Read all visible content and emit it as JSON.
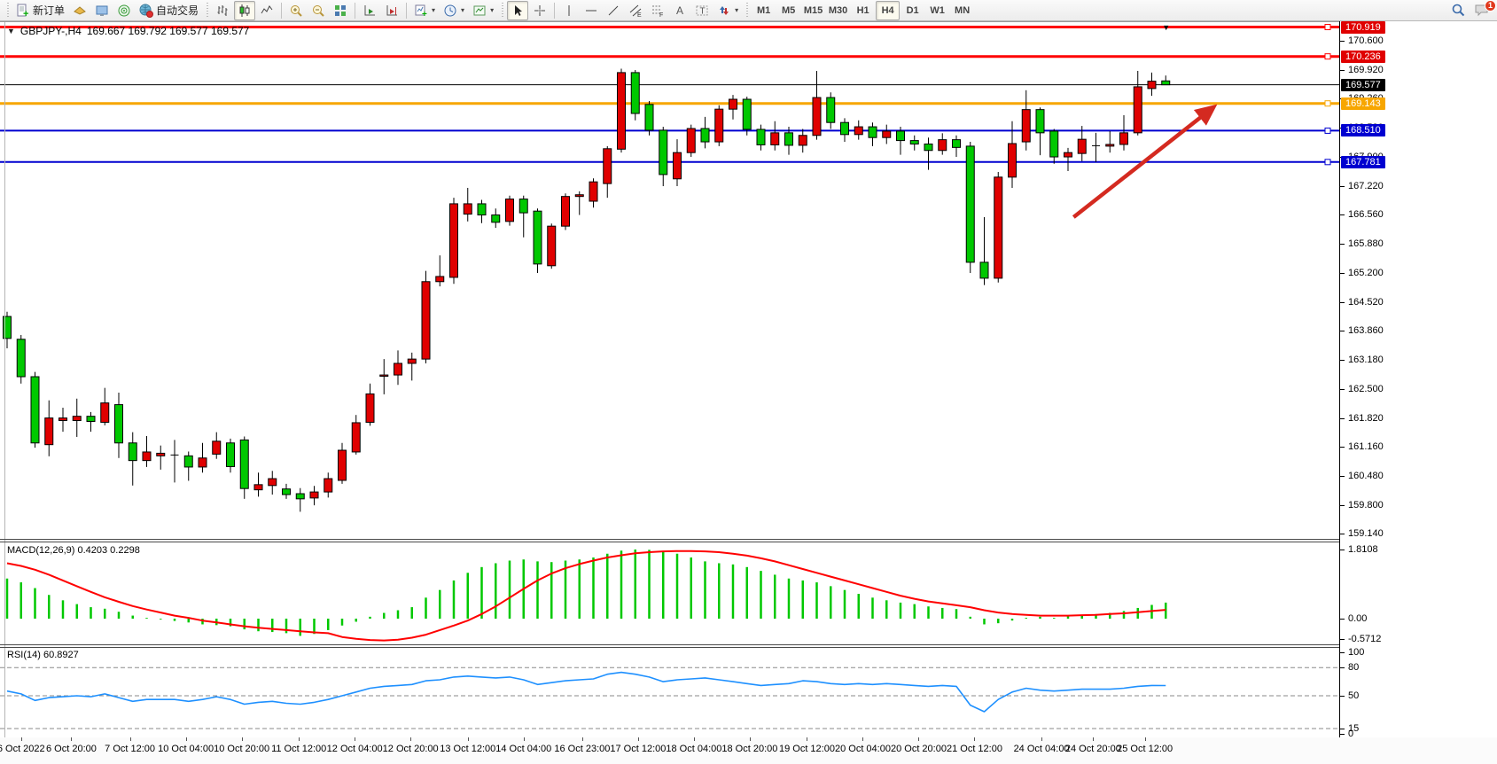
{
  "toolbar": {
    "new_order": "新订单",
    "autotrading": "自动交易",
    "notification_count": "1"
  },
  "timeframes": {
    "items": [
      "M1",
      "M5",
      "M15",
      "M30",
      "H1",
      "H4",
      "D1",
      "W1",
      "MN"
    ],
    "active": "H4"
  },
  "chart": {
    "title": {
      "symbol": "GBPJPY-,H4",
      "quotes": "169.667 169.792 169.577 169.577"
    }
  },
  "panes": {
    "macd": {
      "label": "MACD(12,26,9) 0.4203 0.2298"
    },
    "rsi": {
      "label": "RSI(14) 60.8927"
    }
  },
  "chart_data": {
    "type": "candlestick",
    "symbol": "GBPJPY-",
    "period": "H4",
    "current_ohlc": {
      "open": 169.667,
      "high": 169.792,
      "low": 169.577,
      "close": 169.577
    },
    "colors": {
      "up": "#e00000",
      "down": "#00c800",
      "wick": "#000000",
      "macd_hist": "#00c800",
      "macd_signal": "#ff0000",
      "rsi_line": "#1e90ff",
      "arrow": "#d42a20",
      "level_dash": "#8a8a8a"
    },
    "price_axis": {
      "ticks": [
        {
          "t": "170.600",
          "p": 170.6
        },
        {
          "t": "169.920",
          "p": 169.92
        },
        {
          "t": "169.260",
          "p": 169.26
        },
        {
          "t": "168.580",
          "p": 168.58
        },
        {
          "t": "167.900",
          "p": 167.9
        },
        {
          "t": "167.220",
          "p": 167.22
        },
        {
          "t": "166.560",
          "p": 166.56
        },
        {
          "t": "165.880",
          "p": 165.88
        },
        {
          "t": "165.200",
          "p": 165.2
        },
        {
          "t": "164.520",
          "p": 164.52
        },
        {
          "t": "163.860",
          "p": 163.86
        },
        {
          "t": "163.180",
          "p": 163.18
        },
        {
          "t": "162.500",
          "p": 162.5
        },
        {
          "t": "161.820",
          "p": 161.82
        },
        {
          "t": "161.160",
          "p": 161.16
        },
        {
          "t": "160.480",
          "p": 160.48
        },
        {
          "t": "159.800",
          "p": 159.8
        },
        {
          "t": "159.140",
          "p": 159.14
        }
      ],
      "badges": [
        {
          "t": "170.919",
          "p": 170.919,
          "bg": "#e00000"
        },
        {
          "t": "170.236",
          "p": 170.236,
          "bg": "#e00000"
        },
        {
          "t": "169.577",
          "p": 169.577,
          "bg": "#000000"
        },
        {
          "t": "169.143",
          "p": 169.143,
          "bg": "#f7a600"
        },
        {
          "t": "168.510",
          "p": 168.51,
          "bg": "#0000d0"
        },
        {
          "t": "167.781",
          "p": 167.781,
          "bg": "#0000d0"
        }
      ]
    },
    "hlines": [
      {
        "p": 170.919,
        "color": "#ff0000",
        "w": 3,
        "handle": true
      },
      {
        "p": 170.236,
        "color": "#ff0000",
        "w": 3,
        "handle": true
      },
      {
        "p": 169.577,
        "color": "#000000",
        "w": 1,
        "handle": false
      },
      {
        "p": 169.143,
        "color": "#f7a600",
        "w": 3,
        "handle": true
      },
      {
        "p": 168.51,
        "color": "#0000d0",
        "w": 2,
        "handle": true
      },
      {
        "p": 167.781,
        "color": "#0000d0",
        "w": 2,
        "handle": true
      }
    ],
    "arrow": {
      "from": {
        "i": 76.4,
        "p": 166.5
      },
      "to": {
        "i": 86.4,
        "p": 169.05
      }
    },
    "candles": [
      [
        164.19,
        164.3,
        163.45,
        163.68
      ],
      [
        163.66,
        163.76,
        162.63,
        162.79
      ],
      [
        162.79,
        162.9,
        161.14,
        161.25
      ],
      [
        161.21,
        162.24,
        160.94,
        161.83
      ],
      [
        161.77,
        162.07,
        161.51,
        161.83
      ],
      [
        161.77,
        162.28,
        161.39,
        161.87
      ],
      [
        161.87,
        161.97,
        161.51,
        161.75
      ],
      [
        161.73,
        162.53,
        161.66,
        162.18
      ],
      [
        162.14,
        162.42,
        160.9,
        161.25
      ],
      [
        161.25,
        161.5,
        160.26,
        160.84
      ],
      [
        160.84,
        161.41,
        160.69,
        161.04
      ],
      [
        160.95,
        161.19,
        160.63,
        161.01
      ],
      [
        160.97,
        161.32,
        160.33,
        160.95
      ],
      [
        160.95,
        161.05,
        160.37,
        160.69
      ],
      [
        160.69,
        161.25,
        160.56,
        160.9
      ],
      [
        160.99,
        161.5,
        160.88,
        161.29
      ],
      [
        161.25,
        161.35,
        160.56,
        160.7
      ],
      [
        161.32,
        161.4,
        159.95,
        160.19
      ],
      [
        160.16,
        160.56,
        160.0,
        160.28
      ],
      [
        160.26,
        160.6,
        160.05,
        160.42
      ],
      [
        160.18,
        160.3,
        159.95,
        160.05
      ],
      [
        160.07,
        160.2,
        159.65,
        159.95
      ],
      [
        159.97,
        160.25,
        159.8,
        160.11
      ],
      [
        160.11,
        160.56,
        159.98,
        160.42
      ],
      [
        160.38,
        161.25,
        160.3,
        161.08
      ],
      [
        161.04,
        161.9,
        160.98,
        161.72
      ],
      [
        161.73,
        162.63,
        161.65,
        162.39
      ],
      [
        162.8,
        163.2,
        162.38,
        162.83
      ],
      [
        162.83,
        163.4,
        162.6,
        163.1
      ],
      [
        163.1,
        163.35,
        162.7,
        163.2
      ],
      [
        163.2,
        165.25,
        163.1,
        165.0
      ],
      [
        165.0,
        165.61,
        164.89,
        165.12
      ],
      [
        165.1,
        166.95,
        164.95,
        166.81
      ],
      [
        166.57,
        167.18,
        166.4,
        166.81
      ],
      [
        166.81,
        166.9,
        166.36,
        166.55
      ],
      [
        166.55,
        166.7,
        166.25,
        166.38
      ],
      [
        166.4,
        167.0,
        166.3,
        166.92
      ],
      [
        166.92,
        167.0,
        166.03,
        166.6
      ],
      [
        166.64,
        166.7,
        165.2,
        165.41
      ],
      [
        165.37,
        166.35,
        165.3,
        166.29
      ],
      [
        166.29,
        167.05,
        166.2,
        166.98
      ],
      [
        166.98,
        167.1,
        166.55,
        167.02
      ],
      [
        166.87,
        167.4,
        166.72,
        167.32
      ],
      [
        167.28,
        168.15,
        166.95,
        168.09
      ],
      [
        168.08,
        169.95,
        168.0,
        169.86
      ],
      [
        169.86,
        169.92,
        168.75,
        168.91
      ],
      [
        169.12,
        169.2,
        168.4,
        168.52
      ],
      [
        168.52,
        168.6,
        167.22,
        167.49
      ],
      [
        167.39,
        168.31,
        167.22,
        168.0
      ],
      [
        168.0,
        168.65,
        167.9,
        168.56
      ],
      [
        168.56,
        168.83,
        168.1,
        168.25
      ],
      [
        168.25,
        169.1,
        168.15,
        169.01
      ],
      [
        169.01,
        169.34,
        168.77,
        169.24
      ],
      [
        169.24,
        169.3,
        168.4,
        168.54
      ],
      [
        168.54,
        168.65,
        168.05,
        168.18
      ],
      [
        168.18,
        168.73,
        168.05,
        168.46
      ],
      [
        168.46,
        168.6,
        167.95,
        168.17
      ],
      [
        168.17,
        168.55,
        168.0,
        168.4
      ],
      [
        168.4,
        169.9,
        168.3,
        169.28
      ],
      [
        169.28,
        169.4,
        168.55,
        168.7
      ],
      [
        168.7,
        168.8,
        168.25,
        168.42
      ],
      [
        168.42,
        168.75,
        168.3,
        168.6
      ],
      [
        168.6,
        168.7,
        168.15,
        168.35
      ],
      [
        168.35,
        168.65,
        168.2,
        168.5
      ],
      [
        168.5,
        168.6,
        167.95,
        168.28
      ],
      [
        168.28,
        168.4,
        168.05,
        168.2
      ],
      [
        168.2,
        168.35,
        167.6,
        168.05
      ],
      [
        168.05,
        168.45,
        167.95,
        168.3
      ],
      [
        168.3,
        168.4,
        167.9,
        168.12
      ],
      [
        168.15,
        168.25,
        165.2,
        165.45
      ],
      [
        165.45,
        166.5,
        164.92,
        165.08
      ],
      [
        165.08,
        167.55,
        164.98,
        167.43
      ],
      [
        167.43,
        168.73,
        167.18,
        168.21
      ],
      [
        168.25,
        169.45,
        168.05,
        169.0
      ],
      [
        169.0,
        169.05,
        167.94,
        168.46
      ],
      [
        168.5,
        168.55,
        167.74,
        167.9
      ],
      [
        167.9,
        168.11,
        167.57,
        168.0
      ],
      [
        167.98,
        168.62,
        167.8,
        168.31
      ],
      [
        168.15,
        168.46,
        167.78,
        168.16
      ],
      [
        168.15,
        168.5,
        168.0,
        168.19
      ],
      [
        168.19,
        168.87,
        168.05,
        168.46
      ],
      [
        168.46,
        169.9,
        168.4,
        169.53
      ],
      [
        169.49,
        169.86,
        169.32,
        169.66
      ],
      [
        169.667,
        169.792,
        169.577,
        169.577
      ]
    ],
    "macd": {
      "hist": [
        1.05,
        0.95,
        0.8,
        0.62,
        0.48,
        0.38,
        0.3,
        0.26,
        0.18,
        0.08,
        0.02,
        -0.02,
        -0.06,
        -0.1,
        -0.15,
        -0.17,
        -0.2,
        -0.28,
        -0.33,
        -0.35,
        -0.38,
        -0.45,
        -0.4,
        -0.3,
        -0.18,
        -0.08,
        0.05,
        0.15,
        0.22,
        0.3,
        0.55,
        0.75,
        1.0,
        1.2,
        1.35,
        1.45,
        1.52,
        1.55,
        1.5,
        1.48,
        1.52,
        1.55,
        1.6,
        1.7,
        1.78,
        1.81,
        1.8,
        1.76,
        1.7,
        1.6,
        1.5,
        1.45,
        1.42,
        1.35,
        1.25,
        1.15,
        1.05,
        1.0,
        0.95,
        0.85,
        0.75,
        0.65,
        0.55,
        0.48,
        0.42,
        0.38,
        0.32,
        0.28,
        0.25,
        0.05,
        -0.15,
        -0.12,
        -0.05,
        0.02,
        0.05,
        0.02,
        0.06,
        0.1,
        0.12,
        0.15,
        0.2,
        0.28,
        0.36,
        0.42
      ],
      "signal": [
        1.45,
        1.38,
        1.28,
        1.15,
        1.0,
        0.85,
        0.7,
        0.56,
        0.44,
        0.33,
        0.24,
        0.16,
        0.08,
        0.02,
        -0.05,
        -0.1,
        -0.15,
        -0.2,
        -0.24,
        -0.27,
        -0.3,
        -0.33,
        -0.36,
        -0.38,
        -0.48,
        -0.53,
        -0.56,
        -0.57,
        -0.55,
        -0.5,
        -0.42,
        -0.3,
        -0.18,
        -0.05,
        0.12,
        0.32,
        0.55,
        0.78,
        1.0,
        1.18,
        1.32,
        1.43,
        1.52,
        1.6,
        1.66,
        1.71,
        1.74,
        1.76,
        1.77,
        1.77,
        1.76,
        1.74,
        1.7,
        1.65,
        1.58,
        1.5,
        1.4,
        1.3,
        1.2,
        1.1,
        1.0,
        0.9,
        0.8,
        0.7,
        0.6,
        0.52,
        0.45,
        0.4,
        0.35,
        0.3,
        0.22,
        0.16,
        0.12,
        0.1,
        0.08,
        0.08,
        0.08,
        0.09,
        0.1,
        0.12,
        0.14,
        0.17,
        0.2,
        0.23
      ],
      "scale": [
        {
          "t": "1.8108",
          "v": 1.8108
        },
        {
          "t": "0.00",
          "v": 0.0
        },
        {
          "t": "-0.5712",
          "v": -0.5712
        }
      ],
      "current_values": "0.4203 0.2298"
    },
    "rsi": {
      "values": [
        55,
        52,
        45,
        48,
        49,
        50,
        49,
        52,
        48,
        44,
        46,
        46,
        46,
        44,
        46,
        49,
        46,
        41,
        43,
        44,
        42,
        41,
        43,
        46,
        50,
        54,
        58,
        60,
        61,
        62,
        66,
        67,
        70,
        71,
        70,
        69,
        70,
        67,
        62,
        64,
        66,
        67,
        68,
        73,
        75,
        73,
        70,
        65,
        67,
        68,
        69,
        67,
        65,
        63,
        61,
        62,
        63,
        66,
        65,
        63,
        62,
        63,
        62,
        63,
        62,
        61,
        60,
        61,
        60,
        40,
        33,
        46,
        54,
        58,
        56,
        55,
        56,
        57,
        57,
        57,
        58,
        60,
        61,
        60.89
      ],
      "levels": [
        80,
        50,
        15
      ],
      "scale": [
        {
          "t": "100",
          "v": 100
        },
        {
          "t": "80",
          "v": 80
        },
        {
          "t": "50",
          "v": 50
        },
        {
          "t": "15",
          "v": 15
        },
        {
          "t": "0",
          "v": 0
        }
      ],
      "current_value": 60.8927
    },
    "time_labels": [
      {
        "t": "6 Oct 2022",
        "i": 1
      },
      {
        "t": "6 Oct 20:00",
        "i": 4.6
      },
      {
        "t": "7 Oct 12:00",
        "i": 8.8
      },
      {
        "t": "10 Oct 04:00",
        "i": 12.8
      },
      {
        "t": "10 Oct 20:00",
        "i": 16.8
      },
      {
        "t": "11 Oct 12:00",
        "i": 20.9
      },
      {
        "t": "12 Oct 04:00",
        "i": 24.9
      },
      {
        "t": "12 Oct 20:00",
        "i": 28.9
      },
      {
        "t": "13 Oct 12:00",
        "i": 33
      },
      {
        "t": "14 Oct 04:00",
        "i": 37
      },
      {
        "t": "16 Oct 23:00",
        "i": 41.2
      },
      {
        "t": "17 Oct 12:00",
        "i": 45.2
      },
      {
        "t": "18 Oct 04:00",
        "i": 49.2
      },
      {
        "t": "18 Oct 20:00",
        "i": 53.2
      },
      {
        "t": "19 Oct 12:00",
        "i": 57.3
      },
      {
        "t": "20 Oct 04:00",
        "i": 61.3
      },
      {
        "t": "20 Oct 20:00",
        "i": 65.3
      },
      {
        "t": "21 Oct 12:00",
        "i": 69.3
      },
      {
        "t": "24 Oct 04:00",
        "i": 74.1
      },
      {
        "t": "24 Oct 20:00",
        "i": 77.8
      },
      {
        "t": "25 Oct 12:00",
        "i": 81.5
      }
    ]
  }
}
